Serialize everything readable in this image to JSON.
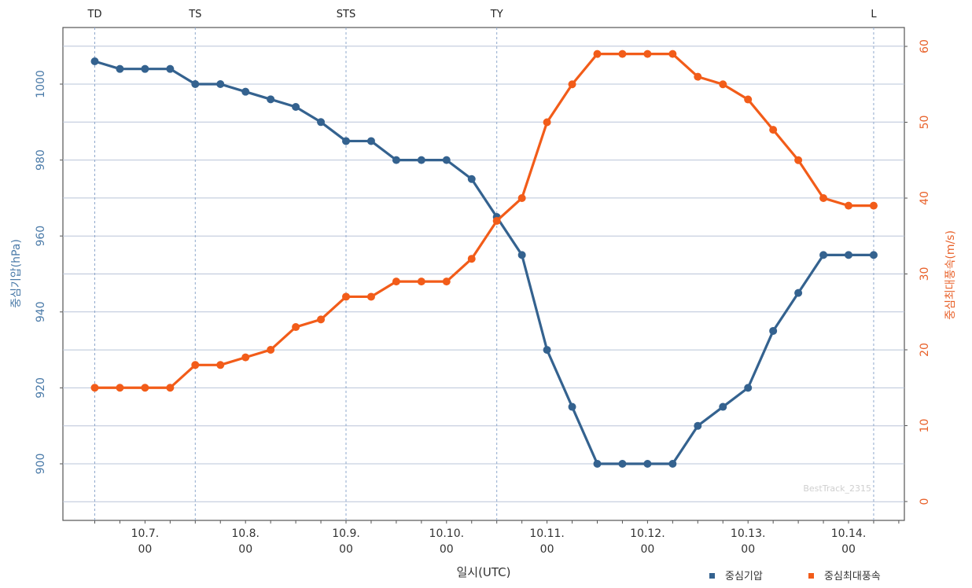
{
  "chart_data": {
    "type": "line",
    "xlabel": "일시(UTC)",
    "ylabel_left": "중심기압(hPa)",
    "ylabel_right": "중심최대풍속(m/s)",
    "watermark": "BestTrack_2315",
    "ylim_left": [
      890,
      1010
    ],
    "ylim_right": [
      0,
      60
    ],
    "yticks_left": [
      "900",
      "920",
      "940",
      "960",
      "980",
      "1000"
    ],
    "yticks_right": [
      "0",
      "10",
      "20",
      "30",
      "40",
      "50",
      "60"
    ],
    "grid": true,
    "legend_position": "bottom-right",
    "x_tick_labels": [
      {
        "date": "10.7.",
        "time": "00"
      },
      {
        "date": "10.8.",
        "time": "00"
      },
      {
        "date": "10.9.",
        "time": "00"
      },
      {
        "date": "10.10.",
        "time": "00"
      },
      {
        "date": "10.11.",
        "time": "00"
      },
      {
        "date": "10.12.",
        "time": "00"
      },
      {
        "date": "10.13.",
        "time": "00"
      },
      {
        "date": "10.14.",
        "time": "00"
      }
    ],
    "stages": [
      "TD",
      "TS",
      "STS",
      "TY",
      "L"
    ],
    "x": [
      "10.6. 12",
      "10.6. 18",
      "10.7. 00",
      "10.7. 06",
      "10.7. 12",
      "10.7. 18",
      "10.8. 00",
      "10.8. 06",
      "10.8. 12",
      "10.8. 18",
      "10.9. 00",
      "10.9. 06",
      "10.9. 12",
      "10.9. 18",
      "10.10. 00",
      "10.10. 06",
      "10.10. 12",
      "10.10. 18",
      "10.11. 00",
      "10.11. 06",
      "10.11. 12",
      "10.11. 18",
      "10.12. 00",
      "10.12. 06",
      "10.12. 12",
      "10.12. 18",
      "10.13. 00",
      "10.13. 06",
      "10.13. 12",
      "10.13. 18",
      "10.14. 00",
      "10.14. 06"
    ],
    "series": [
      {
        "name": "중심기압",
        "axis": "left",
        "color": "#34628f",
        "values": [
          1006,
          1004,
          1004,
          1004,
          1000,
          1000,
          998,
          996,
          994,
          990,
          985,
          985,
          980,
          980,
          980,
          975,
          965,
          955,
          930,
          915,
          900,
          900,
          900,
          900,
          910,
          915,
          920,
          935,
          945,
          955,
          955,
          955
        ]
      },
      {
        "name": "중심최대풍속",
        "axis": "right",
        "color": "#f25c19",
        "values": [
          15,
          15,
          15,
          15,
          18,
          18,
          19,
          20,
          23,
          24,
          27,
          27,
          29,
          29,
          29,
          32,
          37,
          40,
          50,
          55,
          59,
          59,
          59,
          59,
          56,
          55,
          53,
          49,
          45,
          40,
          39,
          39
        ]
      }
    ]
  }
}
